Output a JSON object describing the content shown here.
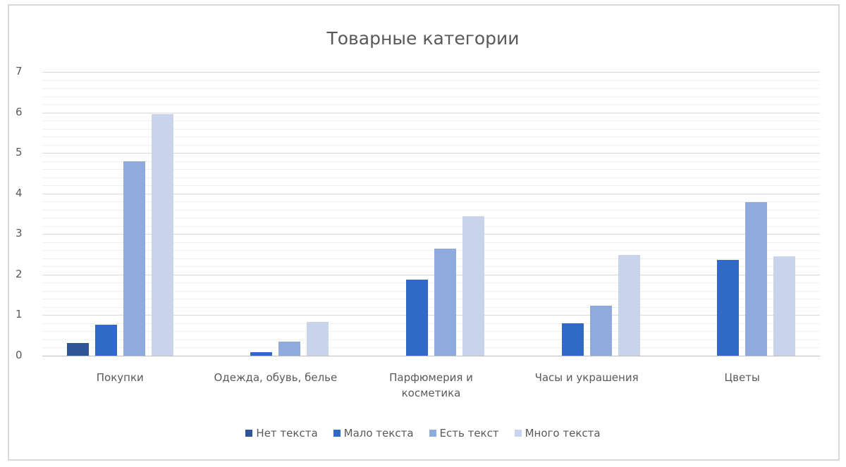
{
  "chart_data": {
    "type": "bar",
    "title": "Товарные категории",
    "xlabel": "",
    "ylabel": "",
    "ylim": [
      0,
      7
    ],
    "yticks": [
      "0",
      "1",
      "2",
      "3",
      "4",
      "5",
      "6",
      "7"
    ],
    "grid": true,
    "legend_position": "bottom",
    "categories": [
      "Покупки",
      "Одежда, обувь, белье",
      "Парфюмерия и косметика",
      "Часы и украшения",
      "Цветы"
    ],
    "category_label_lines": [
      [
        "Покупки"
      ],
      [
        "Одежда, обувь, белье"
      ],
      [
        "Парфюмерия и",
        "косметика"
      ],
      [
        "Часы и украшения"
      ],
      [
        "Цветы"
      ]
    ],
    "series": [
      {
        "name": "Нет текста",
        "color": "#2f5597",
        "values": [
          0.31,
          0,
          0,
          0,
          0
        ]
      },
      {
        "name": "Мало текста",
        "color": "#3169c6",
        "values": [
          0.76,
          0.08,
          1.88,
          0.8,
          2.36
        ]
      },
      {
        "name": "Есть текст",
        "color": "#8faadc",
        "values": [
          4.79,
          0.35,
          2.64,
          1.23,
          3.78
        ]
      },
      {
        "name": "Много текста",
        "color": "#c9d3ec",
        "values": [
          5.95,
          0.83,
          3.44,
          2.48,
          2.45
        ]
      }
    ]
  }
}
